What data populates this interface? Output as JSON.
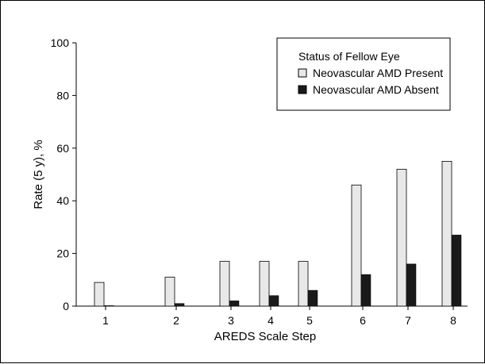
{
  "chart_data": {
    "type": "bar",
    "title": "",
    "xlabel": "AREDS Scale Step",
    "ylabel": "Rate (5 y), %",
    "ylim": [
      0,
      100
    ],
    "yticks": [
      0,
      20,
      40,
      60,
      80,
      100
    ],
    "categories": [
      "1",
      "2",
      "3",
      "4",
      "5",
      "6",
      "7",
      "8"
    ],
    "grid": false,
    "legend": {
      "title": "Status of Fellow Eye",
      "placement": "top-right"
    },
    "series": [
      {
        "name": "Neovascular AMD Present",
        "color": "#e8e8e8",
        "values": [
          9,
          11,
          17,
          17,
          17,
          46,
          52,
          55
        ]
      },
      {
        "name": "Neovascular AMD Absent",
        "color": "#1a1a1a",
        "values": [
          0,
          1,
          2,
          4,
          6,
          12,
          16,
          27
        ]
      }
    ]
  }
}
